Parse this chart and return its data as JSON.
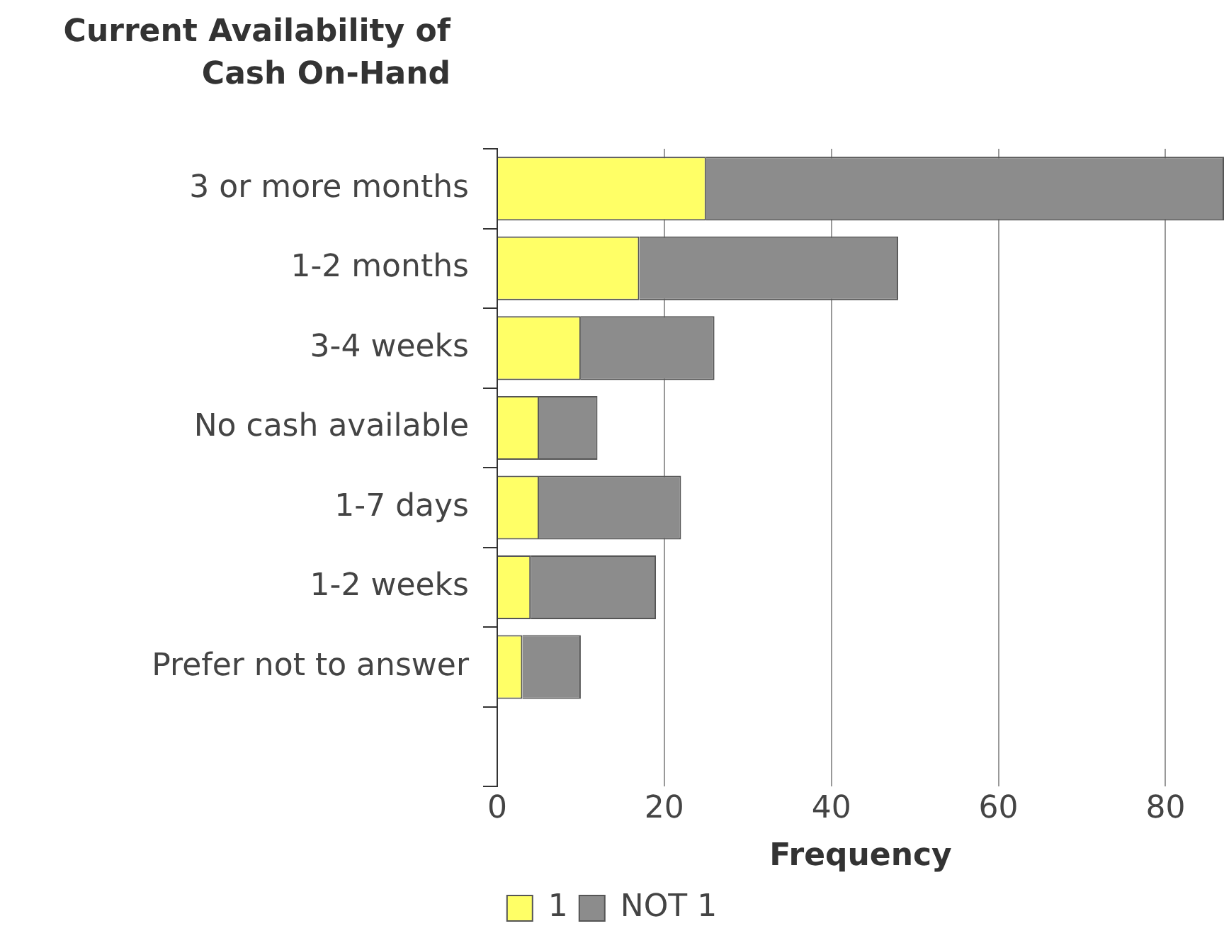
{
  "chart_data": {
    "type": "bar",
    "orientation": "horizontal",
    "stacked": true,
    "title": "Current Availability of\nCash On-Hand",
    "xlabel": "Frequency",
    "categories": [
      "3 or more months",
      "1-2 months",
      "3-4 weeks",
      "No cash available",
      "1-7 days",
      "1-2 weeks",
      "Prefer not to answer",
      null
    ],
    "series": [
      {
        "name": "1",
        "color": "#ffff66",
        "values": [
          25,
          17,
          10,
          5,
          5,
          4,
          3,
          null
        ]
      },
      {
        "name": "NOT 1",
        "color": "#8c8c8c",
        "values": [
          62,
          31,
          16,
          7,
          17,
          15,
          7,
          null
        ]
      }
    ],
    "xlim": [
      0,
      87
    ],
    "xticks": [
      0,
      20,
      40,
      60,
      80
    ],
    "grid": "x",
    "legend": "bottom"
  }
}
